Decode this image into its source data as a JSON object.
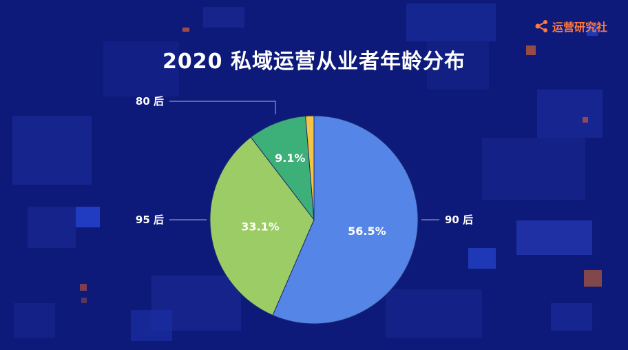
{
  "brand": {
    "name": "运营研究社",
    "icon": "share-nodes-icon",
    "color": "#ff7a3d"
  },
  "chart_data": {
    "type": "pie",
    "title": "2020 私域运营从业者年龄分布",
    "slices": [
      {
        "label": "90 后",
        "value": 56.5,
        "value_label": "56.5%",
        "color": "#5585e6"
      },
      {
        "label": "95 后",
        "value": 33.1,
        "value_label": "33.1%",
        "color": "#9ccc65"
      },
      {
        "label": "80 后",
        "value": 9.1,
        "value_label": "9.1%",
        "color": "#3db079"
      },
      {
        "label": "",
        "value": 1.3,
        "value_label": "",
        "color": "#f4c542"
      }
    ],
    "start_angle": "12 o'clock",
    "direction": "clockwise",
    "legend": "none"
  },
  "colors": {
    "background": "#0e1a7a",
    "label_text": "#ffffff",
    "leader_line": "#aab3d8"
  }
}
